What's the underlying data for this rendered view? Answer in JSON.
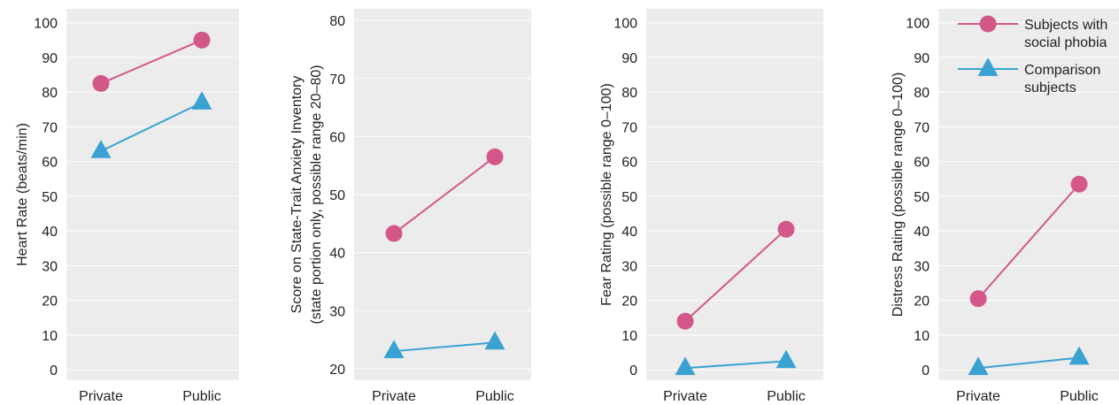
{
  "colors": {
    "panel_bg": "#ececec",
    "social_phobia": "#d4578a",
    "comparison": "#3aa2d2"
  },
  "legend": {
    "placement": "top-right",
    "entries": [
      {
        "series": "social_phobia",
        "lines": [
          "Subjects with",
          "social phobia"
        ],
        "marker": "circle"
      },
      {
        "series": "comparison",
        "lines": [
          "Comparison",
          "subjects"
        ],
        "marker": "triangle"
      }
    ]
  },
  "chart_data": [
    {
      "type": "line",
      "categories": [
        "Private",
        "Public"
      ],
      "ylabel": [
        "Heart Rate (beats/min)"
      ],
      "ylim": [
        -3,
        104
      ],
      "yticks": [
        0,
        10,
        20,
        30,
        40,
        50,
        60,
        70,
        80,
        90,
        100
      ],
      "series": [
        {
          "key": "social_phobia",
          "values": [
            82.5,
            95
          ]
        },
        {
          "key": "comparison",
          "values": [
            63,
            77
          ]
        }
      ]
    },
    {
      "type": "line",
      "categories": [
        "Private",
        "Public"
      ],
      "ylabel": [
        "Score on State-Trait Anxiety Inventory",
        "(state portion only, possible range 20–80)"
      ],
      "ylim": [
        18,
        82
      ],
      "yticks": [
        20,
        30,
        40,
        50,
        60,
        70,
        80
      ],
      "series": [
        {
          "key": "social_phobia",
          "values": [
            43.3,
            56.5
          ]
        },
        {
          "key": "comparison",
          "values": [
            23,
            24.5
          ]
        }
      ]
    },
    {
      "type": "line",
      "categories": [
        "Private",
        "Public"
      ],
      "ylabel": [
        "Fear Rating (possible range 0–100)"
      ],
      "ylim": [
        -3,
        104
      ],
      "yticks": [
        0,
        10,
        20,
        30,
        40,
        50,
        60,
        70,
        80,
        90,
        100
      ],
      "series": [
        {
          "key": "social_phobia",
          "values": [
            14,
            40.5
          ]
        },
        {
          "key": "comparison",
          "values": [
            0.5,
            2.5
          ]
        }
      ]
    },
    {
      "type": "line",
      "categories": [
        "Private",
        "Public"
      ],
      "ylabel": [
        "Distress Rating (possible range 0–100)"
      ],
      "ylim": [
        -3,
        104
      ],
      "yticks": [
        0,
        10,
        20,
        30,
        40,
        50,
        60,
        70,
        80,
        90,
        100
      ],
      "series": [
        {
          "key": "social_phobia",
          "values": [
            20.5,
            53.5
          ]
        },
        {
          "key": "comparison",
          "values": [
            0.5,
            3.5
          ]
        }
      ]
    }
  ]
}
